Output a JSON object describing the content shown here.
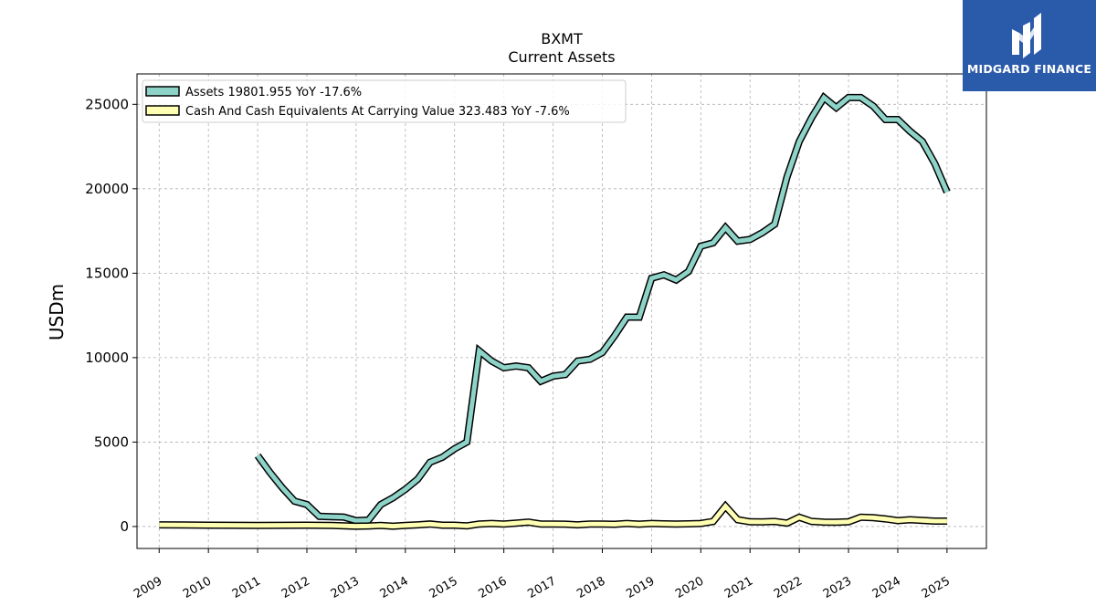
{
  "logo": {
    "text": "MIDGARD FINANCE",
    "color": "#2a5aaa"
  },
  "chart_data": {
    "type": "line",
    "title": "BXMT",
    "subtitle": "Current  Assets",
    "ylabel": "USDm",
    "xlabel": "",
    "xlim": [
      2008.55,
      2025.8
    ],
    "ylim": [
      -1300,
      26800
    ],
    "yticks": [
      0,
      5000,
      10000,
      15000,
      20000,
      25000
    ],
    "xticks": [
      "2009",
      "2010",
      "2011",
      "2012",
      "2013",
      "2014",
      "2015",
      "2016",
      "2017",
      "2018",
      "2019",
      "2020",
      "2021",
      "2022",
      "2023",
      "2024",
      "2025"
    ],
    "grid": true,
    "legend_position": "top-left",
    "series": [
      {
        "name": "Assets  19801.955 YoY -17.6%",
        "color": "#8dd3c7",
        "x": [
          2011.0,
          2011.25,
          2011.5,
          2011.75,
          2012.0,
          2012.25,
          2012.5,
          2012.75,
          2013.0,
          2013.25,
          2013.5,
          2013.75,
          2014.0,
          2014.25,
          2014.5,
          2014.75,
          2015.0,
          2015.25,
          2015.5,
          2015.75,
          2016.0,
          2016.25,
          2016.5,
          2016.75,
          2017.0,
          2017.25,
          2017.5,
          2017.75,
          2018.0,
          2018.25,
          2018.5,
          2018.75,
          2019.0,
          2019.25,
          2019.5,
          2019.75,
          2020.0,
          2020.25,
          2020.5,
          2020.75,
          2021.0,
          2021.25,
          2021.5,
          2021.75,
          2022.0,
          2022.25,
          2022.5,
          2022.75,
          2023.0,
          2023.25,
          2023.5,
          2023.75,
          2024.0,
          2024.25,
          2024.5,
          2024.75,
          2025.0
        ],
        "values": [
          4200,
          3200,
          2300,
          1500,
          1300,
          600,
          580,
          560,
          350,
          380,
          1300,
          1700,
          2200,
          2800,
          3800,
          4100,
          4600,
          5000,
          10400,
          9800,
          9400,
          9500,
          9400,
          8600,
          8900,
          9000,
          9800,
          9900,
          10300,
          11300,
          12400,
          12400,
          14700,
          14900,
          14600,
          15100,
          16600,
          16800,
          17700,
          16900,
          17000,
          17400,
          17900,
          20700,
          22800,
          24200,
          25400,
          24800,
          25400,
          25400,
          24900,
          24100,
          24100,
          23400,
          22800,
          21500,
          19802
        ]
      },
      {
        "name": "Cash And Cash Equivalents At Carrying Value  323.483 YoY -7.6%",
        "color": "#ffffb3",
        "x": [
          2009.0,
          2009.5,
          2010.0,
          2010.5,
          2011.0,
          2011.5,
          2012.0,
          2012.5,
          2013.0,
          2013.25,
          2013.5,
          2013.75,
          2014.0,
          2014.25,
          2014.5,
          2014.75,
          2015.0,
          2015.25,
          2015.5,
          2015.75,
          2016.0,
          2016.25,
          2016.5,
          2016.75,
          2017.0,
          2017.25,
          2017.5,
          2017.75,
          2018.0,
          2018.25,
          2018.5,
          2018.75,
          2019.0,
          2019.25,
          2019.5,
          2019.75,
          2020.0,
          2020.25,
          2020.5,
          2020.75,
          2021.0,
          2021.25,
          2021.5,
          2021.75,
          2022.0,
          2022.25,
          2022.5,
          2022.75,
          2023.0,
          2023.25,
          2023.5,
          2023.75,
          2024.0,
          2024.25,
          2024.5,
          2024.75,
          2025.0
        ],
        "values": [
          100,
          90,
          80,
          70,
          60,
          70,
          80,
          60,
          20,
          30,
          60,
          20,
          60,
          100,
          150,
          80,
          80,
          40,
          150,
          180,
          150,
          200,
          260,
          150,
          150,
          140,
          100,
          150,
          150,
          130,
          180,
          140,
          180,
          160,
          150,
          160,
          180,
          300,
          1200,
          400,
          280,
          270,
          300,
          200,
          550,
          300,
          260,
          250,
          280,
          550,
          520,
          450,
          350,
          400,
          360,
          320,
          323
        ]
      }
    ]
  }
}
